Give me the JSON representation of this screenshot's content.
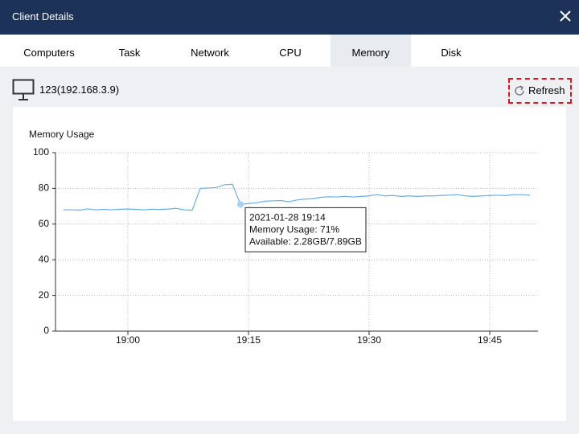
{
  "window": {
    "title": "Client Details"
  },
  "tabs": [
    "Computers",
    "Task",
    "Network",
    "CPU",
    "Memory",
    "Disk"
  ],
  "selected_tab": "Memory",
  "client": {
    "name": "123(192.168.3.9)"
  },
  "refresh_button": "Refresh",
  "chart_data": {
    "type": "line",
    "title": "Memory Usage",
    "color": "#6aaee8",
    "x": [
      "18:52",
      "18:53",
      "18:54",
      "18:55",
      "18:56",
      "18:57",
      "18:58",
      "18:59",
      "19:00",
      "19:01",
      "19:02",
      "19:03",
      "19:04",
      "19:05",
      "19:06",
      "19:07",
      "19:08",
      "19:09",
      "19:10",
      "19:11",
      "19:12",
      "19:13",
      "19:14",
      "19:15",
      "19:16",
      "19:17",
      "19:18",
      "19:19",
      "19:20",
      "19:21",
      "19:22",
      "19:23",
      "19:24",
      "19:25",
      "19:26",
      "19:27",
      "19:28",
      "19:29",
      "19:30",
      "19:31",
      "19:32",
      "19:33",
      "19:34",
      "19:35",
      "19:36",
      "19:37",
      "19:38",
      "19:39",
      "19:40",
      "19:41",
      "19:42",
      "19:43",
      "19:44",
      "19:45",
      "19:46",
      "19:47",
      "19:48",
      "19:49",
      "19:50"
    ],
    "values": [
      68,
      68,
      67.8,
      68.5,
      68,
      68.2,
      68,
      68.3,
      68.4,
      68.2,
      68,
      68.3,
      68.2,
      68.4,
      68.8,
      68,
      67.8,
      80,
      80.2,
      80.5,
      82,
      82.3,
      71,
      71.5,
      72,
      72.8,
      73,
      73.2,
      72.5,
      73.5,
      74,
      74.2,
      75,
      75.3,
      75.2,
      75.5,
      75.2,
      75.5,
      75.8,
      76.5,
      75.8,
      76,
      75.5,
      75.8,
      75.5,
      75.8,
      75.8,
      76,
      76.2,
      76.5,
      75.8,
      75.5,
      75.8,
      76,
      76.2,
      76,
      76.5,
      76.5,
      76.2
    ],
    "xlim": [
      "18:51",
      "19:51"
    ],
    "xticks": [
      "19:00",
      "19:15",
      "19:30",
      "19:45"
    ],
    "ylim": [
      0,
      100
    ],
    "yticks": [
      0,
      20,
      40,
      60,
      80,
      100
    ],
    "grid": true,
    "tooltip": [
      "2021-01-28 19:14",
      "Memory Usage: 71%",
      "Available: 2.28GB/7.89GB"
    ]
  }
}
